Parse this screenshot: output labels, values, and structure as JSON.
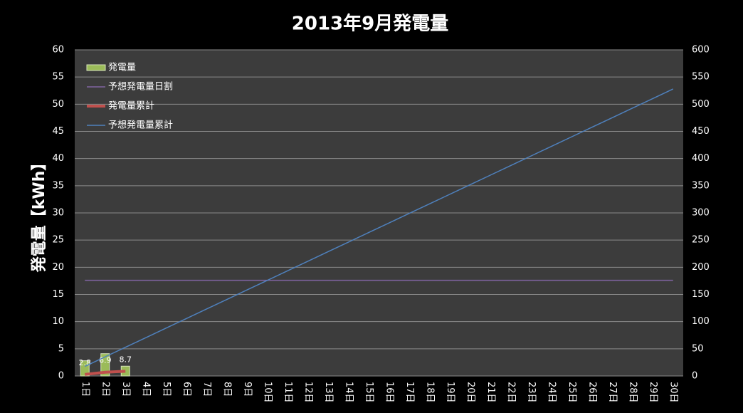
{
  "chart_data": {
    "type": "combo",
    "title": "2013年9月発電量",
    "y_label": "発電量【kWh】",
    "categories": [
      "1日",
      "2日",
      "3日",
      "4日",
      "5日",
      "6日",
      "7日",
      "8日",
      "9日",
      "10日",
      "11日",
      "12日",
      "13日",
      "14日",
      "15日",
      "16日",
      "17日",
      "18日",
      "19日",
      "20日",
      "21日",
      "22日",
      "23日",
      "24日",
      "25日",
      "26日",
      "27日",
      "28日",
      "29日",
      "30日"
    ],
    "series": [
      {
        "name": "発電量",
        "type": "bar",
        "color": "#9bbb59",
        "axis": "y",
        "values": [
          2.8,
          4.1,
          1.8,
          null,
          null,
          null,
          null,
          null,
          null,
          null,
          null,
          null,
          null,
          null,
          null,
          null,
          null,
          null,
          null,
          null,
          null,
          null,
          null,
          null,
          null,
          null,
          null,
          null,
          null,
          null
        ]
      },
      {
        "name": "予想発電量日割",
        "type": "line",
        "color": "#8064a2",
        "axis": "y",
        "values": [
          17.6,
          17.6,
          17.6,
          17.6,
          17.6,
          17.6,
          17.6,
          17.6,
          17.6,
          17.6,
          17.6,
          17.6,
          17.6,
          17.6,
          17.6,
          17.6,
          17.6,
          17.6,
          17.6,
          17.6,
          17.6,
          17.6,
          17.6,
          17.6,
          17.6,
          17.6,
          17.6,
          17.6,
          17.6,
          17.6
        ]
      },
      {
        "name": "発電量累計",
        "type": "line",
        "color": "#c0504d",
        "axis": "y2",
        "data_labels": true,
        "values": [
          2.8,
          6.9,
          8.7,
          null,
          null,
          null,
          null,
          null,
          null,
          null,
          null,
          null,
          null,
          null,
          null,
          null,
          null,
          null,
          null,
          null,
          null,
          null,
          null,
          null,
          null,
          null,
          null,
          null,
          null,
          null
        ]
      },
      {
        "name": "予想発電量累計",
        "type": "line",
        "color": "#4f81bd",
        "axis": "y2",
        "values": [
          17.6,
          35.2,
          52.8,
          70.4,
          88,
          105.6,
          123.2,
          140.8,
          158.4,
          176,
          193.6,
          211.2,
          228.8,
          246.4,
          264,
          281.6,
          299.2,
          316.8,
          334.4,
          352,
          369.6,
          387.2,
          404.8,
          422.4,
          440,
          457.6,
          475.2,
          492.8,
          510.4,
          528
        ]
      }
    ],
    "ylim": [
      0,
      60
    ],
    "yticks": [
      0,
      5,
      10,
      15,
      20,
      25,
      30,
      35,
      40,
      45,
      50,
      55,
      60
    ],
    "y2lim": [
      0,
      600
    ],
    "y2ticks": [
      0,
      50,
      100,
      150,
      200,
      250,
      300,
      350,
      400,
      450,
      500,
      550,
      600
    ],
    "grid": true,
    "legend": "top-left"
  }
}
